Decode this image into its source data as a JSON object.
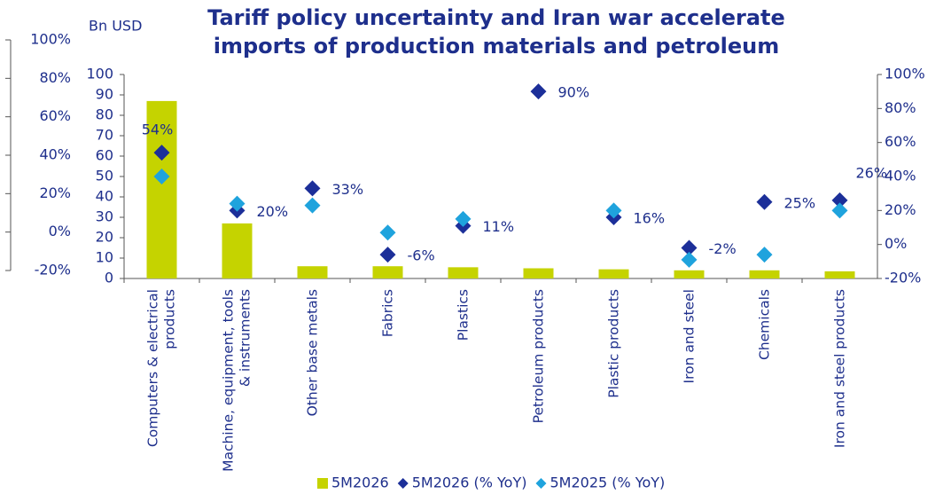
{
  "chart_data": {
    "type": "bar",
    "title": "Tariff policy uncertainty and Iran war accelerate imports of production materials and petroleum",
    "y_label": "Bn USD",
    "categories": [
      "Computers & electrical products",
      "Machine, equipment, tools & instruments",
      "Other base metals",
      "Fabrics",
      "Plastics",
      "Petroleum products",
      "Plastic products",
      "Iron and steel",
      "Chemicals",
      "Iron and steel products"
    ],
    "series": [
      {
        "name": "5M2026",
        "type": "bar",
        "color": "#c5d300",
        "axis": "y",
        "values": [
          87,
          27,
          6,
          6,
          5.5,
          5,
          4.5,
          4,
          4,
          3.5
        ]
      },
      {
        "name": "5M2026 (% YoY)",
        "type": "scatter",
        "color": "#1c2f99",
        "axis": "y2",
        "values": [
          54,
          20,
          33,
          -6,
          11,
          90,
          16,
          -2,
          25,
          26
        ],
        "value_labels": [
          "54%",
          "20%",
          "33%",
          "-6%",
          "11%",
          "90%",
          "16%",
          "-2%",
          "25%",
          "26%"
        ]
      },
      {
        "name": "5M2025 (% YoY)",
        "type": "scatter",
        "color": "#1fa3dd",
        "axis": "y2",
        "values": [
          40,
          24,
          23,
          7,
          15,
          null,
          20,
          -9,
          -6,
          20
        ]
      }
    ],
    "ylim": [
      0,
      100
    ],
    "yticks": [
      0,
      10,
      20,
      30,
      40,
      50,
      60,
      70,
      80,
      90,
      100
    ],
    "y2lim": [
      -20,
      100
    ],
    "y2ticks": [
      {
        "value": -20,
        "label": "-20%"
      },
      {
        "value": 0,
        "label": "0%"
      },
      {
        "value": 20,
        "label": "20%"
      },
      {
        "value": 40,
        "label": "40%"
      },
      {
        "value": 60,
        "label": "60%"
      },
      {
        "value": 80,
        "label": "80%"
      },
      {
        "value": 100,
        "label": "100%"
      }
    ],
    "y3lim": [
      -20,
      100
    ],
    "y3ticks": [
      {
        "value": -20,
        "label": "-20%"
      },
      {
        "value": 0,
        "label": "0%"
      },
      {
        "value": 20,
        "label": "20%"
      },
      {
        "value": 40,
        "label": "40%"
      },
      {
        "value": 60,
        "label": "60%"
      },
      {
        "value": 80,
        "label": "80%"
      },
      {
        "value": 100,
        "label": "100%"
      }
    ],
    "legend": "bottom"
  }
}
